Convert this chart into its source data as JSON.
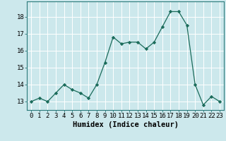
{
  "x": [
    0,
    1,
    2,
    3,
    4,
    5,
    6,
    7,
    8,
    9,
    10,
    11,
    12,
    13,
    14,
    15,
    16,
    17,
    18,
    19,
    20,
    21,
    22,
    23
  ],
  "y": [
    13.0,
    13.2,
    13.0,
    13.5,
    14.0,
    13.7,
    13.5,
    13.2,
    14.0,
    15.3,
    16.8,
    16.4,
    16.5,
    16.5,
    16.1,
    16.5,
    17.4,
    18.3,
    18.3,
    17.5,
    14.0,
    12.8,
    13.3,
    13.0
  ],
  "xlabel": "Humidex (Indice chaleur)",
  "yticks": [
    13,
    14,
    15,
    16,
    17,
    18
  ],
  "ylim": [
    12.5,
    18.9
  ],
  "xlim": [
    -0.5,
    23.5
  ],
  "bg_color": "#cce8ec",
  "grid_color": "#ffffff",
  "line_color": "#1a6b5a",
  "marker_color": "#1a6b5a",
  "tick_label_fontsize": 6.5,
  "xlabel_fontsize": 7.5
}
